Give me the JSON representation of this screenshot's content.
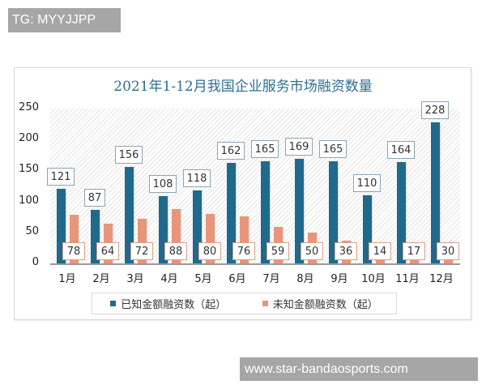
{
  "watermarks": {
    "top": "TG: MYYJJPP",
    "bottom": "www.star-bandaosports.com"
  },
  "colors": {
    "known": "#1f6a8c",
    "unknown": "#e8957a",
    "title": "#2e6f8e"
  },
  "chart_data": {
    "type": "bar",
    "title": "2021年1-12月我国企业服务市场融资数量",
    "xlabel": "",
    "ylabel": "",
    "ylim": [
      0,
      250
    ],
    "yticks": [
      0,
      50,
      100,
      150,
      200,
      250
    ],
    "grid": false,
    "legend_position": "bottom",
    "categories": [
      "1月",
      "2月",
      "3月",
      "4月",
      "5月",
      "6月",
      "7月",
      "8月",
      "9月",
      "10月",
      "11月",
      "12月"
    ],
    "series": [
      {
        "name": "已知金额融资数（起）",
        "color": "#1f6a8c",
        "values": [
          121,
          87,
          156,
          108,
          118,
          162,
          165,
          169,
          165,
          110,
          164,
          228
        ]
      },
      {
        "name": "未知金额融资数（起）",
        "color": "#e8957a",
        "values": [
          78,
          64,
          72,
          88,
          80,
          76,
          59,
          50,
          36,
          14,
          17,
          30
        ]
      }
    ]
  },
  "legend": {
    "known": "已知金额融资数（起）",
    "unknown": "未知金额融资数（起）"
  }
}
